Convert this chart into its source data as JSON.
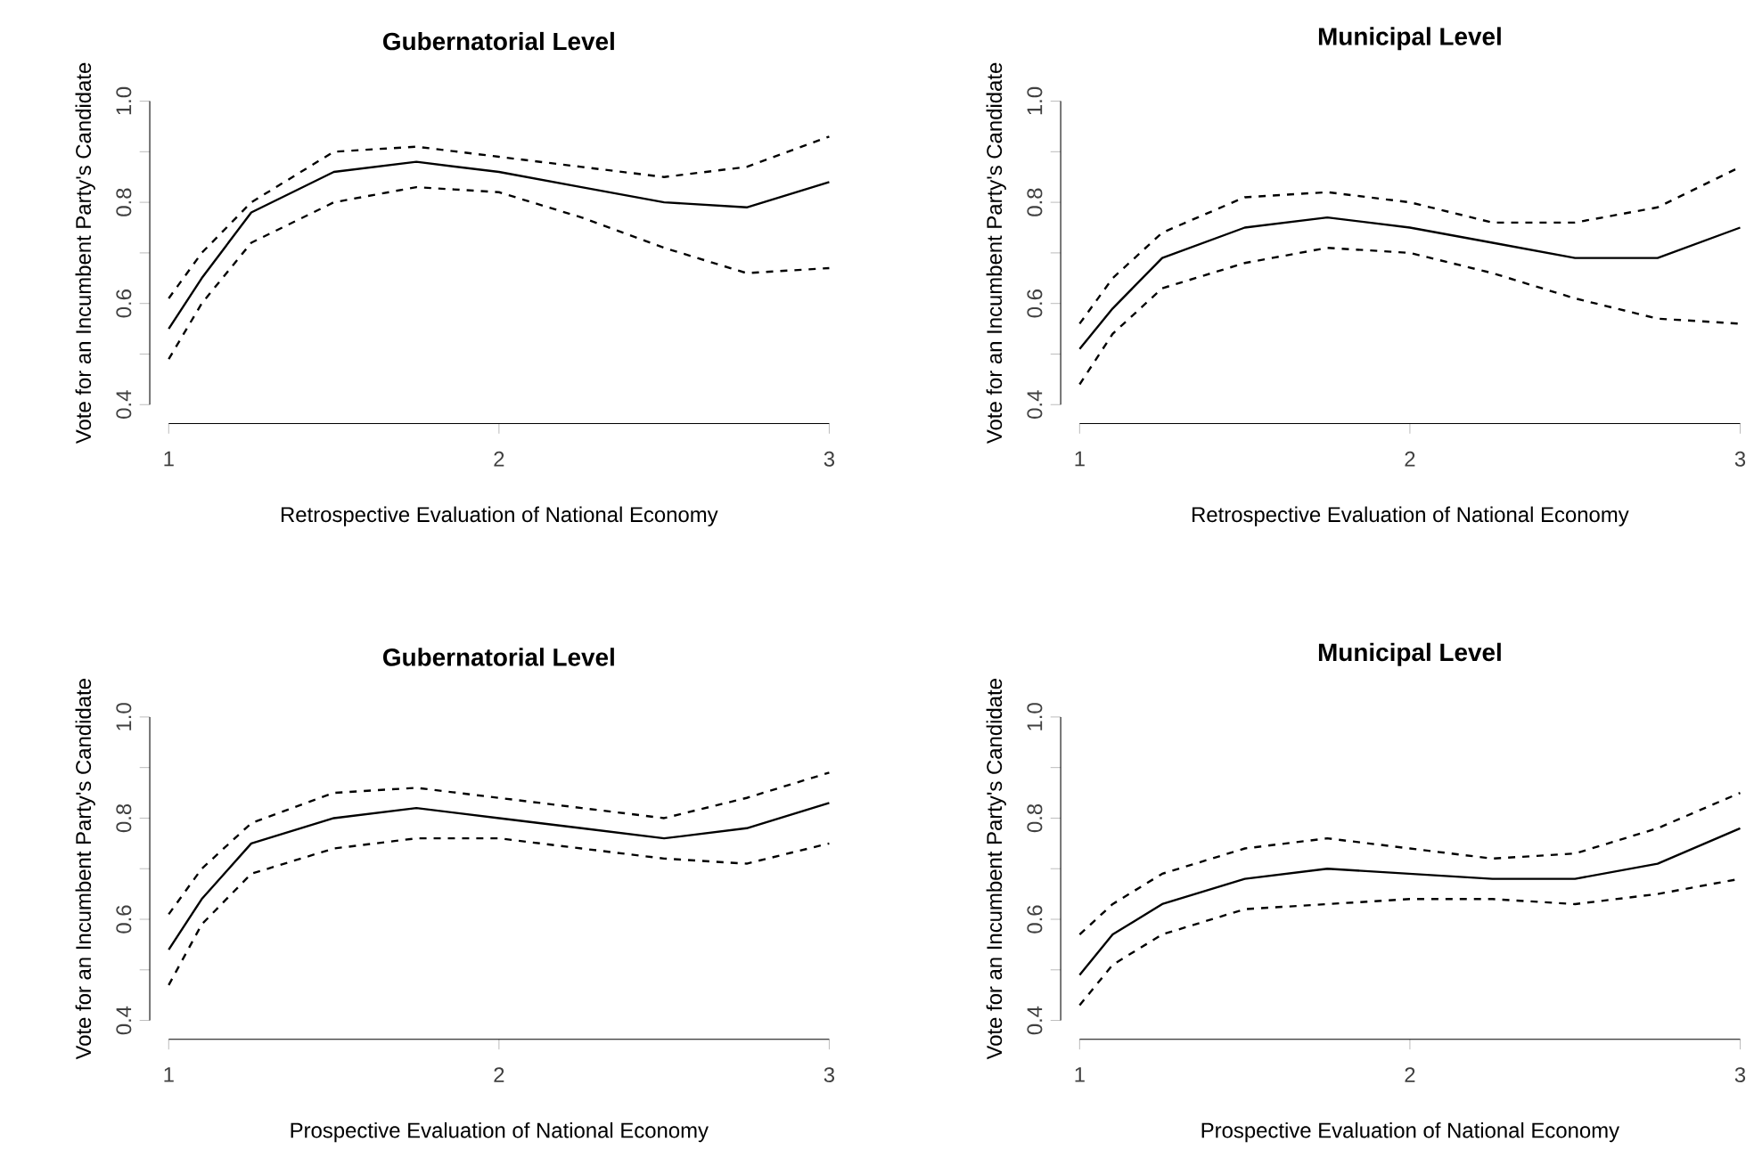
{
  "chart_data": [
    {
      "type": "line",
      "title": "Gubernatorial Level",
      "xlabel": "Retrospective Evaluation of National Economy",
      "ylabel": "Vote for an Incumbent Party's Candidate",
      "x": [
        1,
        1.1,
        1.25,
        1.5,
        1.75,
        2,
        2.25,
        2.5,
        2.75,
        3
      ],
      "xlim": [
        1,
        3
      ],
      "ylim": [
        0.4,
        1.0
      ],
      "xticks": [
        1,
        2,
        3
      ],
      "yticks": [
        {
          "value": 0.4,
          "label": "0.4"
        },
        {
          "value": 0.5,
          "label": null
        },
        {
          "value": 0.6,
          "label": "0.6"
        },
        {
          "value": 0.7,
          "label": null
        },
        {
          "value": 0.8,
          "label": "0.8"
        },
        {
          "value": 0.9,
          "label": null
        },
        {
          "value": 1.0,
          "label": "1.0"
        }
      ],
      "series": [
        {
          "color": "#000000",
          "line_style": "solid",
          "values": [
            0.55,
            0.65,
            0.78,
            0.86,
            0.88,
            0.86,
            0.83,
            0.8,
            0.79,
            0.84
          ]
        },
        {
          "color": "#000000",
          "line_style": "dashed",
          "values": [
            0.61,
            0.7,
            0.8,
            0.9,
            0.91,
            0.89,
            0.87,
            0.85,
            0.87,
            0.93
          ]
        },
        {
          "color": "#000000",
          "line_style": "dashed",
          "values": [
            0.49,
            0.6,
            0.72,
            0.8,
            0.83,
            0.82,
            0.77,
            0.71,
            0.66,
            0.67
          ]
        }
      ]
    },
    {
      "type": "line",
      "title": "Municipal Level",
      "xlabel": "Retrospective Evaluation of National Economy",
      "ylabel": "Vote for an Incumbent Party's Candidate",
      "x": [
        1,
        1.1,
        1.25,
        1.5,
        1.75,
        2,
        2.25,
        2.5,
        2.75,
        3
      ],
      "xlim": [
        1,
        3
      ],
      "ylim": [
        0.4,
        1.0
      ],
      "xticks": [
        1,
        2,
        3
      ],
      "yticks": [
        {
          "value": 0.4,
          "label": "0.4"
        },
        {
          "value": 0.5,
          "label": null
        },
        {
          "value": 0.6,
          "label": "0.6"
        },
        {
          "value": 0.7,
          "label": null
        },
        {
          "value": 0.8,
          "label": "0.8"
        },
        {
          "value": 0.9,
          "label": null
        },
        {
          "value": 1.0,
          "label": "1.0"
        }
      ],
      "series": [
        {
          "color": "#000000",
          "line_style": "solid",
          "values": [
            0.51,
            0.59,
            0.69,
            0.75,
            0.77,
            0.75,
            0.72,
            0.69,
            0.69,
            0.75
          ]
        },
        {
          "color": "#000000",
          "line_style": "dashed",
          "values": [
            0.56,
            0.65,
            0.74,
            0.81,
            0.82,
            0.8,
            0.76,
            0.76,
            0.79,
            0.87
          ]
        },
        {
          "color": "#000000",
          "line_style": "dashed",
          "values": [
            0.44,
            0.54,
            0.63,
            0.68,
            0.71,
            0.7,
            0.66,
            0.61,
            0.57,
            0.56
          ]
        }
      ]
    },
    {
      "type": "line",
      "title": "Gubernatorial Level",
      "xlabel": "Prospective Evaluation of National Economy",
      "ylabel": "Vote for an Incumbent Party's Candidate",
      "x": [
        1,
        1.1,
        1.25,
        1.5,
        1.75,
        2,
        2.25,
        2.5,
        2.75,
        3
      ],
      "xlim": [
        1,
        3
      ],
      "ylim": [
        0.4,
        1.0
      ],
      "xticks": [
        1,
        2,
        3
      ],
      "yticks": [
        {
          "value": 0.4,
          "label": "0.4"
        },
        {
          "value": 0.5,
          "label": null
        },
        {
          "value": 0.6,
          "label": "0.6"
        },
        {
          "value": 0.7,
          "label": null
        },
        {
          "value": 0.8,
          "label": "0.8"
        },
        {
          "value": 0.9,
          "label": null
        },
        {
          "value": 1.0,
          "label": "1.0"
        }
      ],
      "series": [
        {
          "color": "#000000",
          "line_style": "solid",
          "values": [
            0.54,
            0.64,
            0.75,
            0.8,
            0.82,
            0.8,
            0.78,
            0.76,
            0.78,
            0.83
          ]
        },
        {
          "color": "#000000",
          "line_style": "dashed",
          "values": [
            0.61,
            0.7,
            0.79,
            0.85,
            0.86,
            0.84,
            0.82,
            0.8,
            0.84,
            0.89
          ]
        },
        {
          "color": "#000000",
          "line_style": "dashed",
          "values": [
            0.47,
            0.59,
            0.69,
            0.74,
            0.76,
            0.76,
            0.74,
            0.72,
            0.71,
            0.75
          ]
        }
      ]
    },
    {
      "type": "line",
      "title": "Municipal Level",
      "xlabel": "Prospective Evaluation of National Economy",
      "ylabel": "Vote for an Incumbent Party's Candidate",
      "x": [
        1,
        1.1,
        1.25,
        1.5,
        1.75,
        2,
        2.25,
        2.5,
        2.75,
        3
      ],
      "xlim": [
        1,
        3
      ],
      "ylim": [
        0.4,
        1.0
      ],
      "xticks": [
        1,
        2,
        3
      ],
      "yticks": [
        {
          "value": 0.4,
          "label": "0.4"
        },
        {
          "value": 0.5,
          "label": null
        },
        {
          "value": 0.6,
          "label": "0.6"
        },
        {
          "value": 0.7,
          "label": null
        },
        {
          "value": 0.8,
          "label": "0.8"
        },
        {
          "value": 0.9,
          "label": null
        },
        {
          "value": 1.0,
          "label": "1.0"
        }
      ],
      "series": [
        {
          "color": "#000000",
          "line_style": "solid",
          "values": [
            0.49,
            0.57,
            0.63,
            0.68,
            0.7,
            0.69,
            0.68,
            0.68,
            0.71,
            0.78
          ]
        },
        {
          "color": "#000000",
          "line_style": "dashed",
          "values": [
            0.57,
            0.63,
            0.69,
            0.74,
            0.76,
            0.74,
            0.72,
            0.73,
            0.78,
            0.85
          ]
        },
        {
          "color": "#000000",
          "line_style": "dashed",
          "values": [
            0.43,
            0.51,
            0.57,
            0.62,
            0.63,
            0.64,
            0.64,
            0.63,
            0.65,
            0.68
          ]
        }
      ]
    }
  ]
}
